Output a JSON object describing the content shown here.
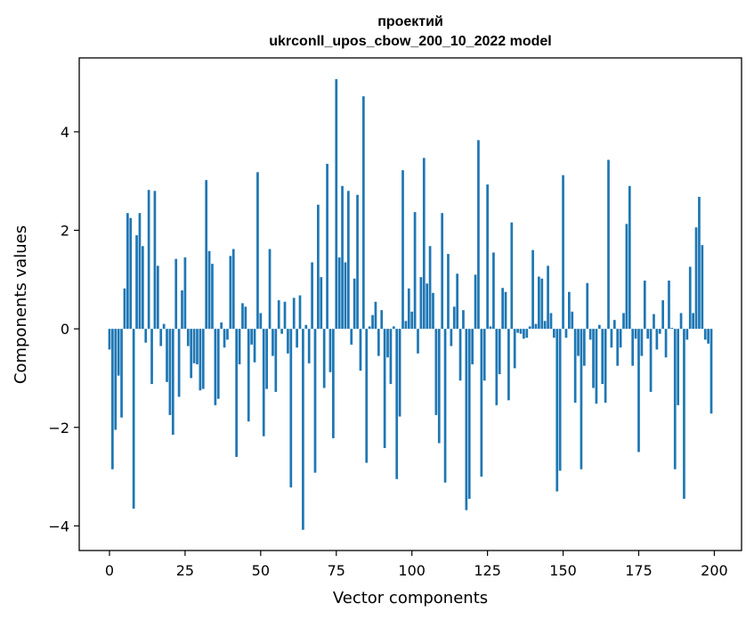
{
  "chart_data": {
    "type": "bar",
    "title_lines": [
      "проектий",
      "ukrconll_upos_cbow_200_10_2022 model"
    ],
    "xlabel": "Vector components",
    "ylabel": "Components values",
    "xlim": [
      -10,
      209
    ],
    "ylim": [
      -4.5,
      5.5
    ],
    "xticks": [
      0,
      25,
      50,
      75,
      100,
      125,
      150,
      175,
      200
    ],
    "yticks": [
      -4,
      -2,
      0,
      2,
      4
    ],
    "ytick_labels": [
      "−4",
      "−2",
      "0",
      "2",
      "4"
    ],
    "bar_color": "#1f77b4",
    "grid": false,
    "x": [
      0,
      1,
      2,
      3,
      4,
      5,
      6,
      7,
      8,
      9,
      10,
      11,
      12,
      13,
      14,
      15,
      16,
      17,
      18,
      19,
      20,
      21,
      22,
      23,
      24,
      25,
      26,
      27,
      28,
      29,
      30,
      31,
      32,
      33,
      34,
      35,
      36,
      37,
      38,
      39,
      40,
      41,
      42,
      43,
      44,
      45,
      46,
      47,
      48,
      49,
      50,
      51,
      52,
      53,
      54,
      55,
      56,
      57,
      58,
      59,
      60,
      61,
      62,
      63,
      64,
      65,
      66,
      67,
      68,
      69,
      70,
      71,
      72,
      73,
      74,
      75,
      76,
      77,
      78,
      79,
      80,
      81,
      82,
      83,
      84,
      85,
      86,
      87,
      88,
      89,
      90,
      91,
      92,
      93,
      94,
      95,
      96,
      97,
      98,
      99,
      100,
      101,
      102,
      103,
      104,
      105,
      106,
      107,
      108,
      109,
      110,
      111,
      112,
      113,
      114,
      115,
      116,
      117,
      118,
      119,
      120,
      121,
      122,
      123,
      124,
      125,
      126,
      127,
      128,
      129,
      130,
      131,
      132,
      133,
      134,
      135,
      136,
      137,
      138,
      139,
      140,
      141,
      142,
      143,
      144,
      145,
      146,
      147,
      148,
      149,
      150,
      151,
      152,
      153,
      154,
      155,
      156,
      157,
      158,
      159,
      160,
      161,
      162,
      163,
      164,
      165,
      166,
      167,
      168,
      169,
      170,
      171,
      172,
      173,
      174,
      175,
      176,
      177,
      178,
      179,
      180,
      181,
      182,
      183,
      184,
      185,
      186,
      187,
      188,
      189,
      190,
      191,
      192,
      193,
      194,
      195,
      196,
      197,
      198,
      199
    ],
    "values": [
      -0.42,
      -2.85,
      -2.05,
      -0.95,
      -1.8,
      0.82,
      2.35,
      2.25,
      -3.65,
      1.9,
      2.35,
      1.68,
      -0.28,
      2.82,
      -1.12,
      2.8,
      1.28,
      -0.35,
      0.1,
      -1.08,
      -1.75,
      -2.15,
      1.42,
      -1.38,
      0.78,
      1.45,
      -0.35,
      -1.0,
      -0.7,
      -0.72,
      -1.25,
      -1.22,
      3.02,
      1.58,
      1.32,
      -1.55,
      -1.42,
      0.13,
      -0.38,
      -0.22,
      1.48,
      1.62,
      -2.6,
      -0.72,
      0.52,
      0.45,
      -1.88,
      -0.32,
      -0.68,
      3.18,
      0.32,
      -2.18,
      -1.22,
      1.62,
      -0.55,
      -1.28,
      0.58,
      -0.1,
      0.55,
      -0.5,
      -3.22,
      0.63,
      -0.38,
      0.68,
      -4.08,
      0.08,
      -0.7,
      1.35,
      -2.92,
      2.52,
      1.05,
      -1.2,
      3.35,
      -0.88,
      -2.22,
      5.07,
      1.45,
      2.9,
      1.35,
      2.8,
      -0.32,
      1.02,
      2.72,
      -0.85,
      4.72,
      -2.72,
      0.05,
      0.28,
      0.55,
      -0.55,
      0.38,
      -2.42,
      -0.58,
      -1.12,
      0.05,
      -3.05,
      -1.78,
      3.22,
      0.16,
      0.82,
      0.35,
      2.37,
      -0.5,
      1.05,
      3.47,
      0.92,
      1.68,
      0.73,
      -1.75,
      -2.32,
      2.35,
      -3.12,
      1.52,
      -0.35,
      0.45,
      1.12,
      -1.05,
      0.38,
      -3.68,
      -3.45,
      -0.72,
      1.1,
      3.83,
      -3.0,
      -1.05,
      2.93,
      0.05,
      1.55,
      -1.55,
      -0.92,
      0.83,
      0.75,
      -1.45,
      2.16,
      -0.8,
      -0.08,
      -0.1,
      -0.2,
      -0.18,
      0.05,
      1.6,
      0.1,
      1.06,
      1.02,
      0.16,
      1.28,
      0.32,
      -0.18,
      -3.3,
      -2.88,
      3.12,
      -0.18,
      0.75,
      0.35,
      -1.5,
      -0.55,
      -2.85,
      -0.75,
      0.93,
      -0.22,
      -1.2,
      -1.52,
      0.08,
      -1.12,
      -1.5,
      3.43,
      -0.38,
      0.18,
      -0.75,
      -0.38,
      0.32,
      2.13,
      2.9,
      -0.75,
      -0.2,
      -2.5,
      -0.55,
      0.98,
      -0.2,
      -1.28,
      0.3,
      -0.42,
      -0.1,
      0.58,
      -0.58,
      0.98,
      0.02,
      -2.85,
      -1.55,
      0.32,
      -3.45,
      -0.22,
      1.26,
      0.32,
      2.06,
      2.68,
      1.7,
      -0.22,
      -0.3,
      -1.72
    ]
  }
}
